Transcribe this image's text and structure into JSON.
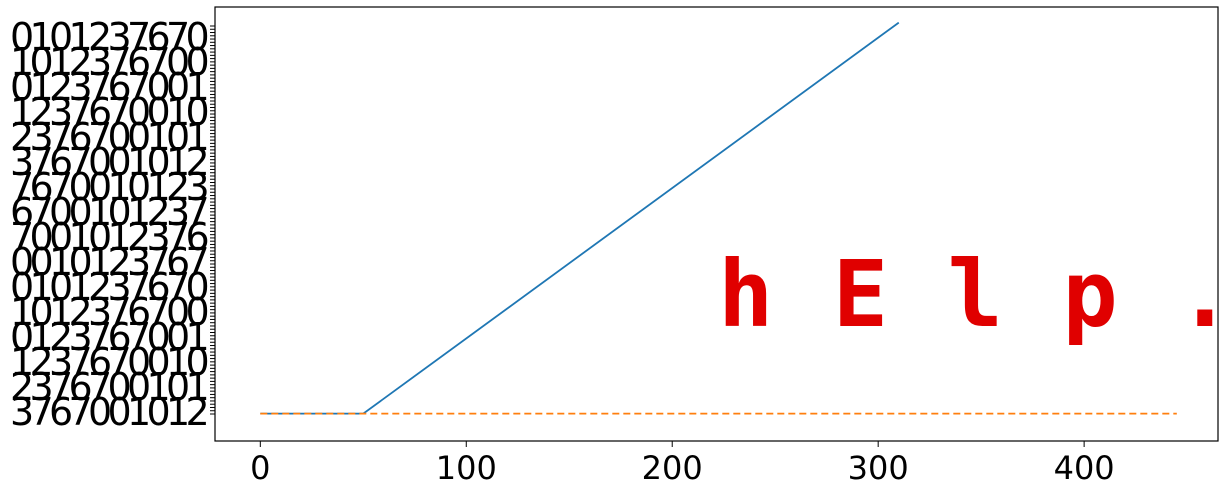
{
  "chart_data": {
    "type": "line",
    "title": "",
    "xlabel": "",
    "ylabel": "",
    "xlim": [
      -22,
      465
    ],
    "ylim": [
      -0.7,
      10.4
    ],
    "grid": false,
    "x_ticks": [
      0,
      100,
      200,
      300,
      400
    ],
    "x_tick_labels": [
      "0",
      "100",
      "200",
      "300",
      "400"
    ],
    "y_ticks_count": 120,
    "series": [
      {
        "style": "solid",
        "color": "#1f77b4",
        "x": [
          0,
          50,
          310
        ],
        "y": [
          0,
          0,
          10
        ]
      },
      {
        "style": "dashed",
        "color": "#ff7f0e",
        "x": [
          0,
          445
        ],
        "y": [
          0,
          0
        ]
      }
    ],
    "annotation": {
      "text": "h E l p .",
      "color": "#e00000"
    },
    "overlapping_ytick_glyphs": [
      "0",
      "1",
      "0",
      "1",
      "2",
      "3",
      "7",
      "6",
      "7",
      "0"
    ]
  }
}
